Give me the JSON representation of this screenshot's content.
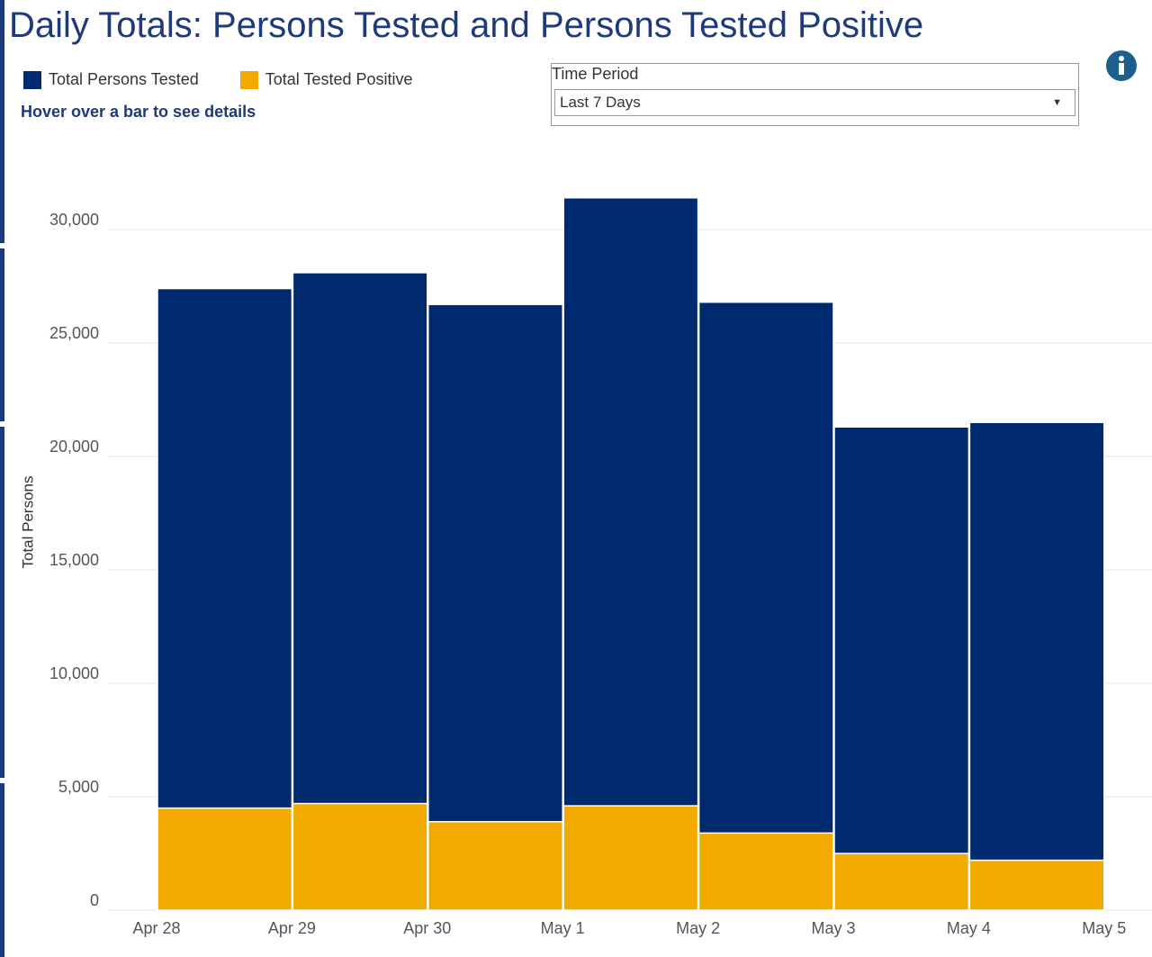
{
  "chart_data": {
    "type": "bar",
    "title": "Daily Totals: Persons Tested and Persons Tested Positive",
    "hint": "Hover over a bar to see details",
    "filter": {
      "label": "Time Period",
      "value": "Last 7 Days"
    },
    "ylabel": "Total Persons",
    "xticks": [
      "Apr 28",
      "Apr 29",
      "Apr 30",
      "May 1",
      "May 2",
      "May 3",
      "May 4",
      "May 5"
    ],
    "series": [
      {
        "name": "Total Persons Tested",
        "color": "#002a6e",
        "values": [
          27400,
          28100,
          26700,
          31400,
          26800,
          21300,
          21500
        ]
      },
      {
        "name": "Total Tested Positive",
        "color": "#f2a900",
        "values": [
          4500,
          4700,
          3900,
          4600,
          3400,
          2500,
          2200
        ]
      }
    ],
    "ylim": [
      0,
      32500
    ],
    "yticks": [
      0,
      {
        "value": 5000,
        "label": "5,000"
      },
      {
        "value": 10000,
        "label": "10,000"
      },
      {
        "value": 15000,
        "label": "15,000"
      },
      {
        "value": 20000,
        "label": "20,000"
      },
      {
        "value": 25000,
        "label": "25,000"
      },
      {
        "value": 30000,
        "label": "30,000"
      }
    ],
    "grid": true
  }
}
